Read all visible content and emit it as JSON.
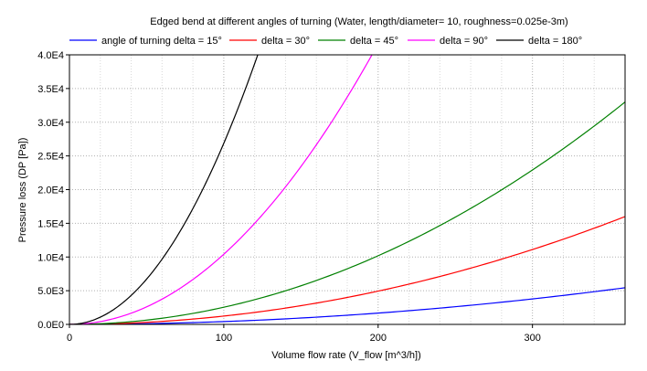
{
  "chart_data": {
    "type": "line",
    "title": "Edged bend at different angles of turning (Water, length/diameter= 10, roughness=0.025e-3m)",
    "xlabel": "Volume flow rate (V_flow [m^3/h])",
    "ylabel": "Pressure loss (DP [Pa])",
    "xlim": [
      0,
      360
    ],
    "ylim": [
      0,
      40000
    ],
    "x_ticks": [
      0,
      100,
      200,
      300
    ],
    "x_tick_labels": [
      "0",
      "100",
      "200",
      "300"
    ],
    "y_ticks": [
      0,
      5000,
      10000,
      15000,
      20000,
      25000,
      30000,
      35000,
      40000
    ],
    "y_tick_labels": [
      "0.0E0",
      "5.0E3",
      "1.0E4",
      "1.5E4",
      "2.0E4",
      "2.5E4",
      "3.0E4",
      "3.5E4",
      "4.0E4"
    ],
    "grid": true,
    "legend_position": "top",
    "series": [
      {
        "name": "angle of turning delta = 15°",
        "color": "#0000ff",
        "x": [
          0,
          40,
          80,
          120,
          160,
          200,
          240,
          280,
          320,
          360
        ],
        "y": [
          0,
          67,
          269,
          604,
          1074,
          1679,
          2417,
          3290,
          4297,
          5440
        ]
      },
      {
        "name": "delta = 30°",
        "color": "#ff0000",
        "x": [
          0,
          40,
          80,
          120,
          160,
          200,
          240,
          280,
          320,
          360
        ],
        "y": [
          0,
          198,
          790,
          1778,
          3160,
          4938,
          7111,
          9679,
          12642,
          16000
        ]
      },
      {
        "name": "delta = 45°",
        "color": "#008000",
        "x": [
          0,
          40,
          80,
          120,
          160,
          200,
          240,
          280,
          320,
          360
        ],
        "y": [
          0,
          407,
          1630,
          3667,
          6519,
          10185,
          14667,
          19963,
          26074,
          33000
        ]
      },
      {
        "name": "delta = 90°",
        "color": "#ff00ff",
        "x": [
          0,
          20,
          40,
          60,
          80,
          100,
          120,
          140,
          160,
          180,
          196
        ],
        "y": [
          0,
          416,
          1664,
          3744,
          6656,
          10400,
          14976,
          20384,
          26624,
          33696,
          40000
        ]
      },
      {
        "name": "delta = 180°",
        "color": "#000000",
        "x": [
          0,
          20,
          40,
          60,
          80,
          100,
          122
        ],
        "y": [
          0,
          1075,
          4300,
          9675,
          17200,
          26875,
          40000
        ]
      }
    ]
  }
}
